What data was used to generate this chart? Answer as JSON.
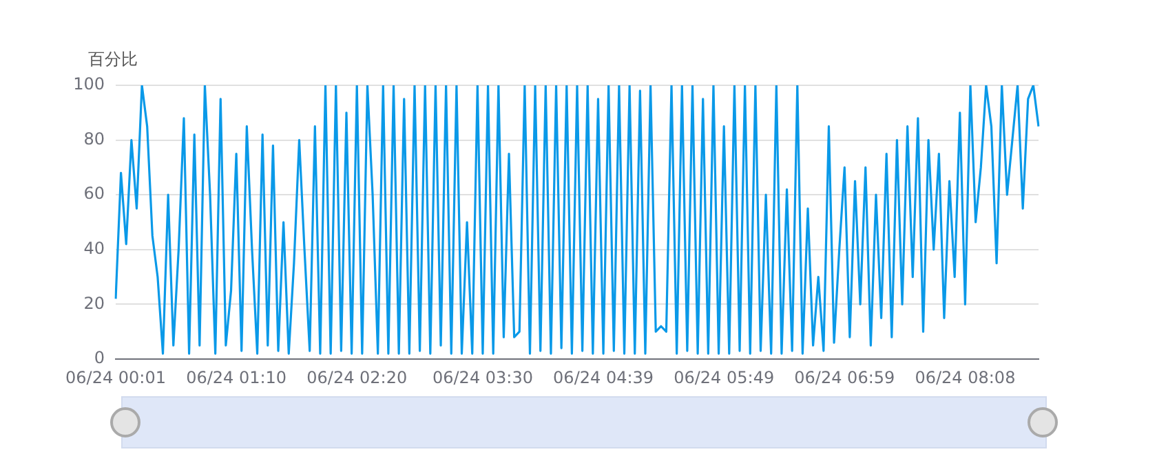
{
  "chart_data": {
    "type": "line",
    "ylabel": "百分比",
    "legend": false,
    "grid": "y",
    "marker": "none",
    "line_style": "solid",
    "categories": [
      "06/24 00:01",
      null,
      null,
      null,
      null,
      null,
      null,
      null,
      null,
      null,
      null,
      null,
      null,
      null,
      null,
      null,
      null,
      null,
      null,
      null,
      null,
      null,
      null,
      "06/24 01:10",
      null,
      null,
      null,
      null,
      null,
      null,
      null,
      null,
      null,
      null,
      null,
      null,
      null,
      null,
      null,
      null,
      null,
      null,
      null,
      null,
      null,
      null,
      "06/24 02:20",
      null,
      null,
      null,
      null,
      null,
      null,
      null,
      null,
      null,
      null,
      null,
      null,
      null,
      null,
      null,
      null,
      null,
      null,
      null,
      null,
      null,
      null,
      null,
      "06/24 03:30",
      null,
      null,
      null,
      null,
      null,
      null,
      null,
      null,
      null,
      null,
      null,
      null,
      null,
      null,
      null,
      null,
      null,
      null,
      null,
      null,
      null,
      null,
      "06/24 04:39",
      null,
      null,
      null,
      null,
      null,
      null,
      null,
      null,
      null,
      null,
      null,
      null,
      null,
      null,
      null,
      null,
      null,
      null,
      null,
      null,
      null,
      null,
      "06/24 05:49",
      null,
      null,
      null,
      null,
      null,
      null,
      null,
      null,
      null,
      null,
      null,
      null,
      null,
      null,
      null,
      null,
      null,
      null,
      null,
      null,
      null,
      null,
      "06/24 06:59",
      null,
      null,
      null,
      null,
      null,
      null,
      null,
      null,
      null,
      null,
      null,
      null,
      null,
      null,
      null,
      null,
      null,
      null,
      null,
      null,
      null,
      null,
      "06/24 08:08",
      null,
      null,
      null,
      null,
      null,
      null,
      null,
      null,
      null,
      null,
      null,
      null,
      null,
      null
    ],
    "ylim": [
      0,
      100
    ],
    "yticks": [
      0,
      20,
      40,
      60,
      80,
      100
    ],
    "series": [
      {
        "color": "#0a99e8",
        "values": [
          22,
          68,
          42,
          80,
          55,
          100,
          85,
          45,
          30,
          2,
          60,
          5,
          40,
          88,
          2,
          82,
          5,
          100,
          60,
          2,
          95,
          5,
          25,
          75,
          3,
          85,
          40,
          2,
          82,
          5,
          78,
          3,
          50,
          2,
          35,
          80,
          40,
          3,
          85,
          2,
          100,
          2,
          100,
          3,
          90,
          2,
          100,
          2,
          100,
          60,
          2,
          100,
          2,
          100,
          2,
          95,
          2,
          100,
          3,
          100,
          2,
          100,
          5,
          100,
          2,
          100,
          2,
          50,
          2,
          100,
          2,
          100,
          2,
          100,
          8,
          75,
          8,
          10,
          100,
          2,
          100,
          3,
          100,
          2,
          100,
          4,
          100,
          2,
          100,
          3,
          100,
          2,
          95,
          2,
          100,
          3,
          100,
          2,
          100,
          2,
          98,
          2,
          100,
          10,
          12,
          10,
          100,
          2,
          100,
          3,
          100,
          2,
          95,
          2,
          100,
          2,
          85,
          2,
          100,
          3,
          100,
          2,
          100,
          3,
          60,
          2,
          100,
          2,
          62,
          3,
          100,
          2,
          55,
          5,
          30,
          3,
          85,
          6,
          40,
          70,
          8,
          65,
          20,
          70,
          5,
          60,
          15,
          75,
          8,
          80,
          20,
          85,
          30,
          88,
          10,
          80,
          40,
          75,
          15,
          65,
          30,
          90,
          20,
          100,
          50,
          70,
          100,
          85,
          35,
          100,
          60,
          80,
          100,
          55,
          95,
          100,
          85
        ]
      }
    ]
  }
}
